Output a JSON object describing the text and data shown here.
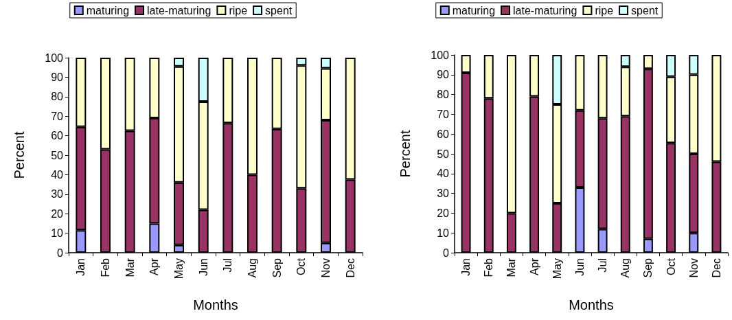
{
  "chart_data": [
    {
      "type": "bar",
      "stacked": true,
      "xlabel": "Months",
      "ylabel": "Percent",
      "categories": [
        "Jan",
        "Feb",
        "Mar",
        "Apr",
        "May",
        "Jun",
        "Jul",
        "Aug",
        "Sep",
        "Oct",
        "Nov",
        "Dec"
      ],
      "ylim": [
        0,
        100
      ],
      "yticks": [
        0,
        10,
        20,
        30,
        40,
        50,
        60,
        70,
        80,
        90,
        100
      ],
      "grid": false,
      "legend": "top",
      "series": [
        {
          "name": "maturing",
          "color": "#9999ff",
          "values": [
            11.5,
            null,
            null,
            15,
            4,
            null,
            null,
            null,
            null,
            null,
            5,
            null
          ]
        },
        {
          "name": "late-maturing",
          "color": "#993366",
          "values": [
            53,
            53,
            62.5,
            54,
            32,
            22,
            66.5,
            40,
            63.5,
            33,
            63,
            37.5
          ]
        },
        {
          "name": "ripe",
          "color": "#ffffcc",
          "values": [
            35.5,
            47,
            37.5,
            31,
            59.5,
            55.5,
            33.5,
            60,
            36.5,
            63,
            26.5,
            62.5
          ]
        },
        {
          "name": "spent",
          "color": "#ccffff",
          "values": [
            null,
            null,
            null,
            null,
            4.5,
            22.5,
            null,
            null,
            null,
            4,
            5.5,
            null
          ]
        }
      ]
    },
    {
      "type": "bar",
      "stacked": true,
      "xlabel": "Months",
      "ylabel": "Percent",
      "categories": [
        "Jan",
        "Feb",
        "Mar",
        "Apr",
        "May",
        "Jun",
        "Jul",
        "Aug",
        "Sep",
        "Oct",
        "Nov",
        "Dec"
      ],
      "ylim": [
        0,
        100
      ],
      "yticks": [
        0,
        10,
        20,
        30,
        40,
        50,
        60,
        70,
        80,
        90,
        100
      ],
      "grid": false,
      "legend": "top",
      "series": [
        {
          "name": "maturing",
          "color": "#9999ff",
          "values": [
            null,
            null,
            null,
            null,
            null,
            33,
            12,
            null,
            7,
            null,
            10,
            null
          ]
        },
        {
          "name": "late-maturing",
          "color": "#993366",
          "values": [
            91,
            78,
            20,
            79,
            25,
            39,
            56,
            69,
            86,
            55.5,
            40,
            46
          ]
        },
        {
          "name": "ripe",
          "color": "#ffffcc",
          "values": [
            9,
            22,
            80,
            21,
            50,
            28,
            32,
            25,
            7,
            33.5,
            40,
            54
          ]
        },
        {
          "name": "spent",
          "color": "#ccffff",
          "values": [
            null,
            null,
            null,
            null,
            25,
            null,
            null,
            6,
            null,
            11,
            10,
            null
          ]
        }
      ]
    }
  ]
}
